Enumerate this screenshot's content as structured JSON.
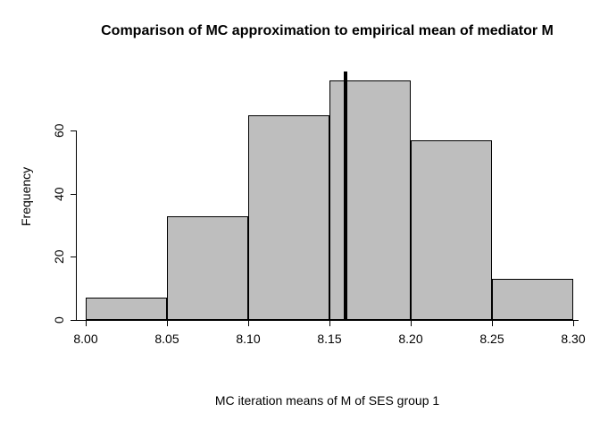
{
  "figure": {
    "background": "#ffffff"
  },
  "chart_data": {
    "type": "bar",
    "chart_kind": "histogram",
    "title": "Comparison of MC approximation to empirical mean of mediator M",
    "xlabel": "MC iteration means of M of SES group 1",
    "ylabel": "Frequency",
    "xlim": [
      8.0,
      8.3
    ],
    "ylim": [
      0,
      78
    ],
    "grid": false,
    "legend": null,
    "bar_fill": "#bebebe",
    "bar_border": "#000000",
    "x_ticks": [
      {
        "value": 8.0,
        "label": "8.00"
      },
      {
        "value": 8.05,
        "label": "8.05"
      },
      {
        "value": 8.1,
        "label": "8.10"
      },
      {
        "value": 8.15,
        "label": "8.15"
      },
      {
        "value": 8.2,
        "label": "8.20"
      },
      {
        "value": 8.25,
        "label": "8.25"
      },
      {
        "value": 8.3,
        "label": "8.30"
      }
    ],
    "y_ticks": [
      {
        "value": 0,
        "label": "0"
      },
      {
        "value": 20,
        "label": "20"
      },
      {
        "value": 40,
        "label": "40"
      },
      {
        "value": 60,
        "label": "60"
      }
    ],
    "bins": [
      {
        "start": 8.0,
        "end": 8.05,
        "count": 7
      },
      {
        "start": 8.05,
        "end": 8.1,
        "count": 33
      },
      {
        "start": 8.1,
        "end": 8.15,
        "count": 65
      },
      {
        "start": 8.15,
        "end": 8.2,
        "count": 76
      },
      {
        "start": 8.2,
        "end": 8.25,
        "count": 57
      },
      {
        "start": 8.25,
        "end": 8.3,
        "count": 13
      }
    ],
    "vline": {
      "value": 8.16,
      "color": "#000000",
      "width": 4
    }
  }
}
